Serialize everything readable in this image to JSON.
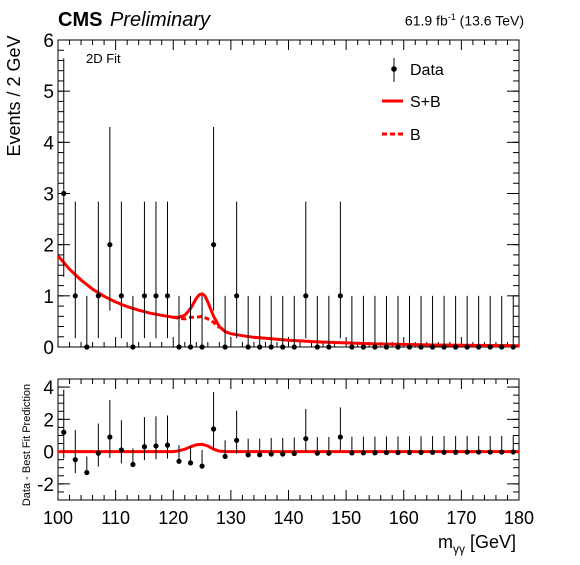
{
  "header": {
    "experiment": "CMS",
    "status": "Preliminary",
    "lumi_value": "61.9 fb",
    "lumi_exp": "-1",
    "energy": "(13.6 TeV)"
  },
  "colors": {
    "model": "#ff0000",
    "data": "#000000"
  },
  "chart_data": [
    {
      "type": "scatter",
      "annotation": "2D Fit",
      "ylabel": "Events / 2 GeV",
      "xlim": [
        100,
        180
      ],
      "ylim": [
        0,
        6
      ],
      "yticks": [
        0,
        1,
        2,
        3,
        4,
        5,
        6
      ],
      "legend_position": "top-right",
      "legend": [
        {
          "label": "Data",
          "style": "marker"
        },
        {
          "label": "S+B",
          "style": "solid"
        },
        {
          "label": "B",
          "style": "dashed"
        }
      ],
      "data": {
        "x": [
          101,
          103,
          105,
          107,
          109,
          111,
          113,
          115,
          117,
          119,
          121,
          123,
          125,
          127,
          129,
          131,
          133,
          135,
          137,
          139,
          141,
          143,
          145,
          147,
          149,
          151,
          153,
          155,
          157,
          159,
          161,
          163,
          165,
          167,
          169,
          171,
          173,
          175,
          177,
          179
        ],
        "y": [
          3,
          1,
          0,
          1,
          2,
          1,
          0,
          1,
          1,
          1,
          0,
          0,
          0,
          2,
          0,
          1,
          0,
          0,
          0,
          0,
          0,
          1,
          0,
          0,
          1,
          0,
          0,
          0,
          0,
          0,
          0,
          0,
          0,
          0,
          0,
          0,
          0,
          0,
          0,
          0
        ]
      },
      "series": [
        {
          "name": "S+B",
          "style": "solid",
          "x": [
            100,
            102,
            104,
            106,
            108,
            110,
            112,
            114,
            116,
            118,
            120,
            121,
            122,
            123,
            124,
            124.5,
            125,
            125.5,
            126,
            127,
            128,
            129,
            130,
            132,
            134,
            136,
            138,
            140,
            145,
            150,
            155,
            160,
            165,
            170,
            175,
            180
          ],
          "y": [
            1.78,
            1.52,
            1.31,
            1.13,
            0.99,
            0.88,
            0.79,
            0.72,
            0.66,
            0.62,
            0.58,
            0.58,
            0.62,
            0.75,
            0.95,
            1.02,
            1.04,
            1.0,
            0.88,
            0.6,
            0.4,
            0.3,
            0.26,
            0.22,
            0.19,
            0.17,
            0.15,
            0.13,
            0.1,
            0.08,
            0.06,
            0.05,
            0.04,
            0.035,
            0.03,
            0.025
          ]
        },
        {
          "name": "B",
          "style": "dashed",
          "x": [
            120,
            121,
            122,
            123,
            124,
            125,
            126,
            127,
            128
          ],
          "y": [
            0.58,
            0.56,
            0.55,
            0.58,
            0.58,
            0.6,
            0.55,
            0.48,
            0.38
          ]
        }
      ]
    },
    {
      "type": "scatter",
      "xlabel": "m",
      "xlabel_sub": "γγ",
      "xlabel_unit": "[GeV]",
      "ylabel": "Data - Best Fit Prediction",
      "xlim": [
        100,
        180
      ],
      "ylim": [
        -3,
        4.5
      ],
      "yticks": [
        -2,
        0,
        2,
        4
      ],
      "xticks": [
        100,
        110,
        120,
        130,
        140,
        150,
        160,
        170,
        180
      ],
      "data": {
        "x": [
          101,
          103,
          105,
          107,
          109,
          111,
          113,
          115,
          117,
          119,
          121,
          123,
          125,
          127,
          129,
          131,
          133,
          135,
          137,
          139,
          141,
          143,
          145,
          147,
          149,
          151,
          153,
          155,
          157,
          159,
          161,
          163,
          165,
          167,
          169,
          171,
          173,
          175,
          177,
          179
        ],
        "y": [
          1.2,
          -0.5,
          -1.3,
          -0.1,
          0.9,
          0.1,
          -0.8,
          0.3,
          0.35,
          0.4,
          -0.6,
          -0.7,
          -0.9,
          1.4,
          -0.3,
          0.7,
          -0.2,
          -0.2,
          -0.15,
          -0.15,
          -0.12,
          0.8,
          -0.1,
          -0.1,
          0.9,
          -0.08,
          -0.07,
          -0.07,
          -0.06,
          -0.06,
          -0.05,
          -0.05,
          -0.04,
          -0.04,
          -0.04,
          -0.03,
          -0.03,
          -0.03,
          -0.03,
          -0.02
        ]
      },
      "series": [
        {
          "name": "S+B",
          "style": "solid",
          "x": [
            100,
            118,
            120,
            121,
            122,
            123,
            124,
            125,
            126,
            127,
            128,
            129,
            130,
            180
          ],
          "y": [
            0,
            0,
            0,
            0.05,
            0.15,
            0.3,
            0.42,
            0.45,
            0.35,
            0.15,
            0.03,
            0,
            0,
            0
          ]
        }
      ]
    }
  ]
}
